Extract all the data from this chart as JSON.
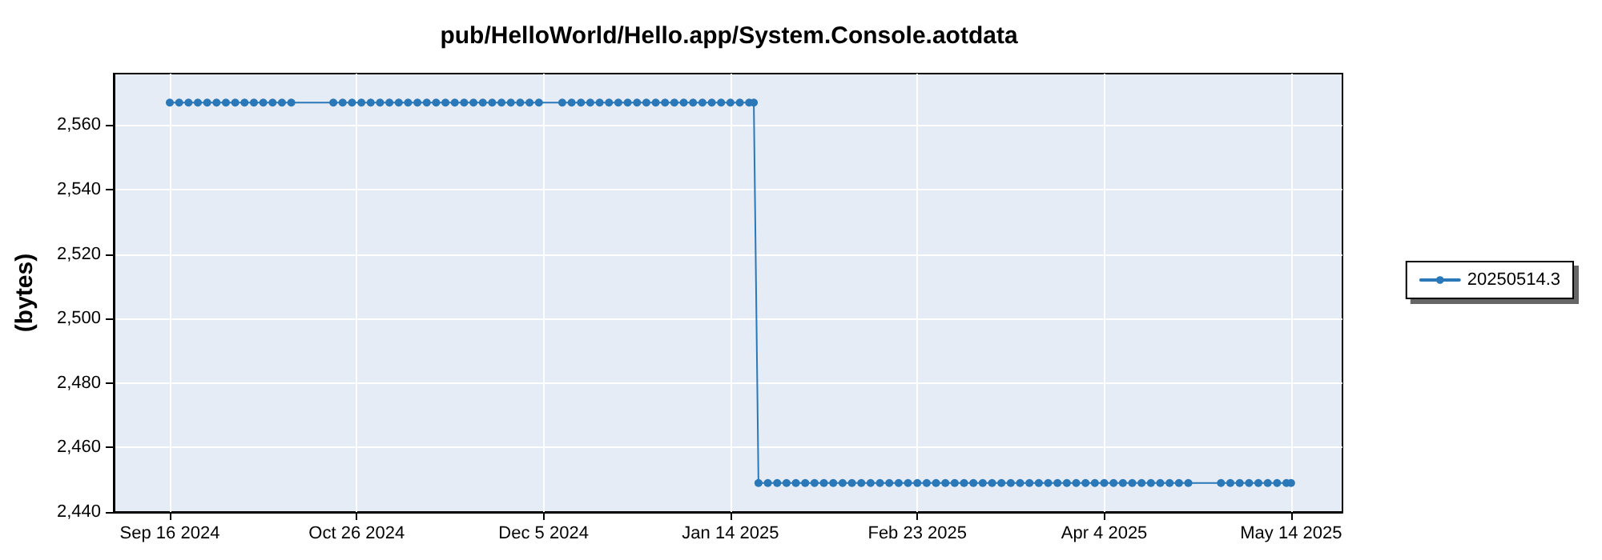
{
  "chart_data": {
    "type": "line",
    "title": "pub/HelloWorld/Hello.app/System.Console.aotdata",
    "ylabel": "(bytes)",
    "x": [
      "2024-09-16",
      "2024-09-18",
      "2024-09-20",
      "2024-09-22",
      "2024-09-24",
      "2024-09-26",
      "2024-09-28",
      "2024-09-30",
      "2024-10-02",
      "2024-10-04",
      "2024-10-06",
      "2024-10-08",
      "2024-10-10",
      "2024-10-12",
      "2024-10-21",
      "2024-10-23",
      "2024-10-25",
      "2024-10-27",
      "2024-10-29",
      "2024-10-31",
      "2024-11-02",
      "2024-11-04",
      "2024-11-06",
      "2024-11-08",
      "2024-11-10",
      "2024-11-12",
      "2024-11-14",
      "2024-11-16",
      "2024-11-18",
      "2024-11-20",
      "2024-11-22",
      "2024-11-24",
      "2024-11-26",
      "2024-11-28",
      "2024-11-30",
      "2024-12-02",
      "2024-12-04",
      "2024-12-09",
      "2024-12-11",
      "2024-12-13",
      "2024-12-15",
      "2024-12-17",
      "2024-12-19",
      "2024-12-21",
      "2024-12-23",
      "2024-12-25",
      "2024-12-27",
      "2024-12-29",
      "2024-12-31",
      "2025-01-02",
      "2025-01-04",
      "2025-01-06",
      "2025-01-08",
      "2025-01-10",
      "2025-01-12",
      "2025-01-14",
      "2025-01-16",
      "2025-01-18",
      "2025-01-19",
      "2025-01-20",
      "2025-01-22",
      "2025-01-24",
      "2025-01-26",
      "2025-01-28",
      "2025-01-30",
      "2025-02-01",
      "2025-02-03",
      "2025-02-05",
      "2025-02-07",
      "2025-02-09",
      "2025-02-11",
      "2025-02-13",
      "2025-02-15",
      "2025-02-17",
      "2025-02-19",
      "2025-02-21",
      "2025-02-23",
      "2025-02-25",
      "2025-02-27",
      "2025-03-01",
      "2025-03-03",
      "2025-03-05",
      "2025-03-07",
      "2025-03-09",
      "2025-03-11",
      "2025-03-13",
      "2025-03-15",
      "2025-03-17",
      "2025-03-19",
      "2025-03-21",
      "2025-03-23",
      "2025-03-25",
      "2025-03-27",
      "2025-03-29",
      "2025-03-31",
      "2025-04-02",
      "2025-04-04",
      "2025-04-06",
      "2025-04-08",
      "2025-04-10",
      "2025-04-12",
      "2025-04-14",
      "2025-04-16",
      "2025-04-18",
      "2025-04-20",
      "2025-04-22",
      "2025-04-29",
      "2025-05-01",
      "2025-05-03",
      "2025-05-05",
      "2025-05-07",
      "2025-05-09",
      "2025-05-11",
      "2025-05-13",
      "2025-05-14"
    ],
    "series": [
      {
        "name": "20250514.3",
        "color": "#2a78b8",
        "values": [
          2567,
          2567,
          2567,
          2567,
          2567,
          2567,
          2567,
          2567,
          2567,
          2567,
          2567,
          2567,
          2567,
          2567,
          2567,
          2567,
          2567,
          2567,
          2567,
          2567,
          2567,
          2567,
          2567,
          2567,
          2567,
          2567,
          2567,
          2567,
          2567,
          2567,
          2567,
          2567,
          2567,
          2567,
          2567,
          2567,
          2567,
          2567,
          2567,
          2567,
          2567,
          2567,
          2567,
          2567,
          2567,
          2567,
          2567,
          2567,
          2567,
          2567,
          2567,
          2567,
          2567,
          2567,
          2567,
          2567,
          2567,
          2567,
          2567,
          2449,
          2449,
          2449,
          2449,
          2449,
          2449,
          2449,
          2449,
          2449,
          2449,
          2449,
          2449,
          2449,
          2449,
          2449,
          2449,
          2449,
          2449,
          2449,
          2449,
          2449,
          2449,
          2449,
          2449,
          2449,
          2449,
          2449,
          2449,
          2449,
          2449,
          2449,
          2449,
          2449,
          2449,
          2449,
          2449,
          2449,
          2449,
          2449,
          2449,
          2449,
          2449,
          2449,
          2449,
          2449,
          2449,
          2449,
          2449,
          2449,
          2449,
          2449,
          2449,
          2449,
          2449,
          2449,
          2449
        ]
      }
    ],
    "xlim": [
      "2024-09-04",
      "2025-05-25"
    ],
    "xticks": [
      {
        "value": "2024-09-16",
        "label": "Sep 16 2024"
      },
      {
        "value": "2024-10-26",
        "label": "Oct 26 2024"
      },
      {
        "value": "2024-12-05",
        "label": "Dec 5 2024"
      },
      {
        "value": "2025-01-14",
        "label": "Jan 14 2025"
      },
      {
        "value": "2025-02-23",
        "label": "Feb 23 2025"
      },
      {
        "value": "2025-04-04",
        "label": "Apr 4 2025"
      },
      {
        "value": "2025-05-14",
        "label": "May 14 2025"
      }
    ],
    "ylim": [
      2440,
      2576
    ],
    "yticks": [
      {
        "value": 2440,
        "label": "2,440"
      },
      {
        "value": 2460,
        "label": "2,460"
      },
      {
        "value": 2480,
        "label": "2,480"
      },
      {
        "value": 2500,
        "label": "2,500"
      },
      {
        "value": 2520,
        "label": "2,520"
      },
      {
        "value": 2540,
        "label": "2,540"
      },
      {
        "value": 2560,
        "label": "2,560"
      }
    ],
    "grid": true,
    "legend": "right",
    "marker": "circle",
    "line_style": "solid"
  }
}
